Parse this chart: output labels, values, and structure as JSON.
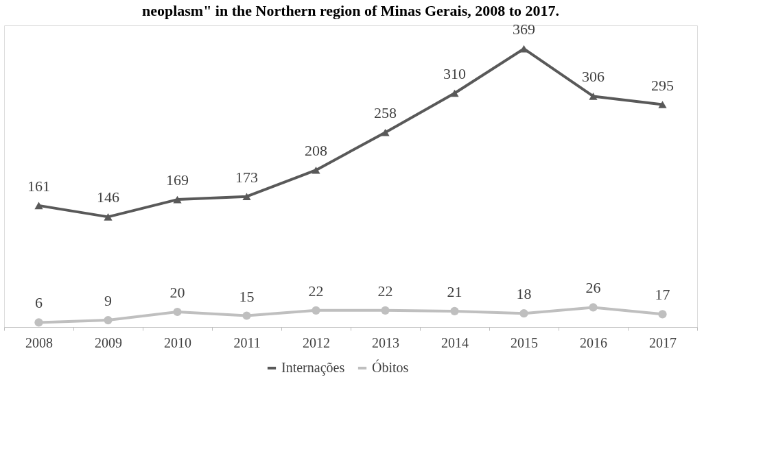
{
  "chart_data": {
    "type": "line",
    "title": "neoplasm\" in the Northern region of Minas Gerais, 2008 to 2017.",
    "categories": [
      "2008",
      "2009",
      "2010",
      "2011",
      "2012",
      "2013",
      "2014",
      "2015",
      "2016",
      "2017"
    ],
    "series": [
      {
        "name": "Internações",
        "color": "#595959",
        "marker": "triangle",
        "values": [
          161,
          146,
          169,
          173,
          208,
          258,
          310,
          369,
          306,
          295
        ]
      },
      {
        "name": "Óbitos",
        "color": "#bfbfbf",
        "marker": "circle",
        "values": [
          6,
          9,
          20,
          15,
          22,
          22,
          21,
          18,
          26,
          17
        ]
      }
    ],
    "ylim": [
      0,
      400
    ],
    "tick_labels": "x",
    "data_labels": true,
    "grid": false,
    "legend": "bottom",
    "line_style": "solid"
  }
}
